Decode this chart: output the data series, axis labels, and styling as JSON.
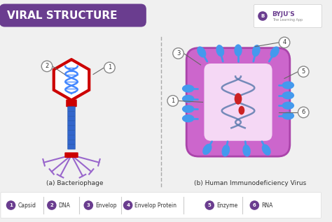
{
  "title": "VIRAL STRUCTURE",
  "title_bg": "#6a3d8f",
  "title_color": "#ffffff",
  "bg_color": "#f0f0f0",
  "legend_items": [
    {
      "num": "1",
      "label": "Capsid"
    },
    {
      "num": "2",
      "label": "DNA"
    },
    {
      "num": "3",
      "label": "Envelop"
    },
    {
      "num": "4",
      "label": "Envelop Protein"
    },
    {
      "num": "5",
      "label": "Enzyme"
    },
    {
      "num": "6",
      "label": "RNA"
    }
  ],
  "legend_color": "#6a3d8f",
  "label_a": "(a) Bacteriophage",
  "label_b": "(b) Human Immunodeficiency Virus",
  "phage_head_color": "#cc0000",
  "phage_dna_color": "#4488ff",
  "phage_tail_color": "#3366cc",
  "phage_collar_color": "#cc0000",
  "phage_legs_color": "#9966cc",
  "hiv_envelope_color": "#cc66cc",
  "hiv_inner_color": "#f5d8f5",
  "hiv_spike_color": "#4499ee",
  "hiv_rna_color": "#5577aa",
  "hiv_core_color": "#cc2222",
  "divider_color": "#aaaaaa",
  "byju_color": "#6a3d8f"
}
